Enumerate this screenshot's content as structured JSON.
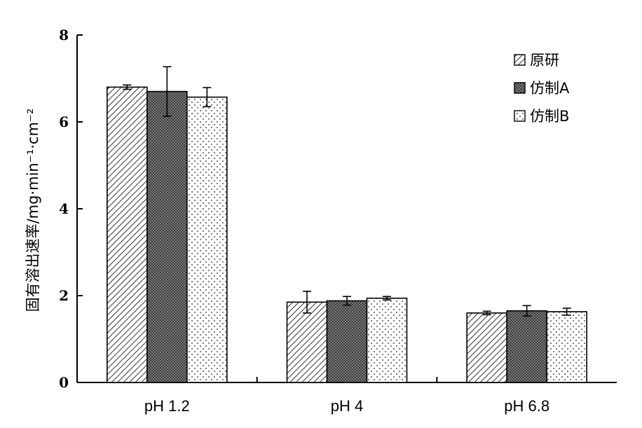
{
  "chart_data": {
    "type": "bar",
    "categories": [
      "pH 1.2",
      "pH 4",
      "pH 6.8"
    ],
    "series": [
      {
        "name": "原研",
        "values": [
          6.8,
          1.85,
          1.6
        ],
        "errors": [
          0.05,
          0.25,
          0.04
        ],
        "pattern": "hatch"
      },
      {
        "name": "仿制A",
        "values": [
          6.7,
          1.88,
          1.65
        ],
        "errors": [
          0.57,
          0.1,
          0.12
        ],
        "pattern": "grid"
      },
      {
        "name": "仿制B",
        "values": [
          6.57,
          1.94,
          1.63
        ],
        "errors": [
          0.22,
          0.04,
          0.08
        ],
        "pattern": "dots"
      }
    ],
    "ylabel": "固有溶出速率/mg·min⁻¹·cm⁻²",
    "xlabel": "",
    "ylim": [
      0,
      8
    ],
    "yticks": [
      "0",
      "2",
      "4",
      "6",
      "8"
    ],
    "legend_position": "top-right",
    "grid": false,
    "error_bars": true
  }
}
